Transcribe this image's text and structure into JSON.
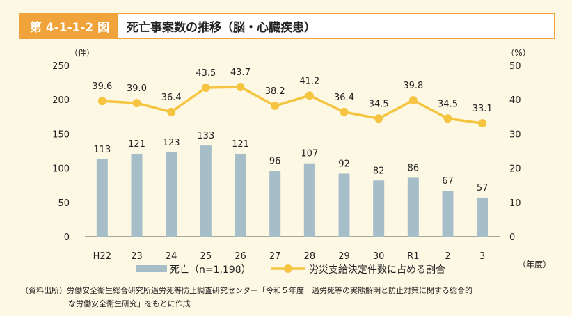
{
  "header": {
    "figure_no": "第 4-1-1-2 図",
    "title": "死亡事案数の推移（脳・心臓疾患）"
  },
  "source": {
    "line1": "（資料出所）労働安全衛生総合研究所過労死等防止調査研究センター「令和５年度　過労死等の実態解明と防止対策に関する総合的",
    "line2": "な労働安全衛生研究」をもとに作成"
  },
  "colors": {
    "bar": "#a6bec8",
    "line": "#f5c542",
    "accent": "#f0a33b"
  },
  "chart_data": {
    "type": "bar+line",
    "categories": [
      "H22",
      "23",
      "24",
      "25",
      "26",
      "27",
      "28",
      "29",
      "30",
      "R1",
      "2",
      "3"
    ],
    "y_left": {
      "unit": "（件）",
      "range": [
        0,
        250
      ],
      "ticks": [
        0,
        50,
        100,
        150,
        200,
        250
      ]
    },
    "y_right": {
      "unit": "（%）",
      "range": [
        0,
        50
      ],
      "ticks": [
        0,
        10,
        20,
        30,
        40,
        50
      ]
    },
    "x_unit": "（年度）",
    "series": [
      {
        "name": "死亡（n=1,198）",
        "type": "bar",
        "axis": "left",
        "values": [
          113,
          121,
          123,
          133,
          121,
          96,
          107,
          92,
          82,
          86,
          67,
          57
        ]
      },
      {
        "name": "労災支給決定件数に占める割合",
        "type": "line",
        "axis": "right",
        "values": [
          39.6,
          39.0,
          36.4,
          43.5,
          43.7,
          38.2,
          41.2,
          36.4,
          34.5,
          39.8,
          34.5,
          33.1
        ]
      }
    ],
    "grid": false
  }
}
